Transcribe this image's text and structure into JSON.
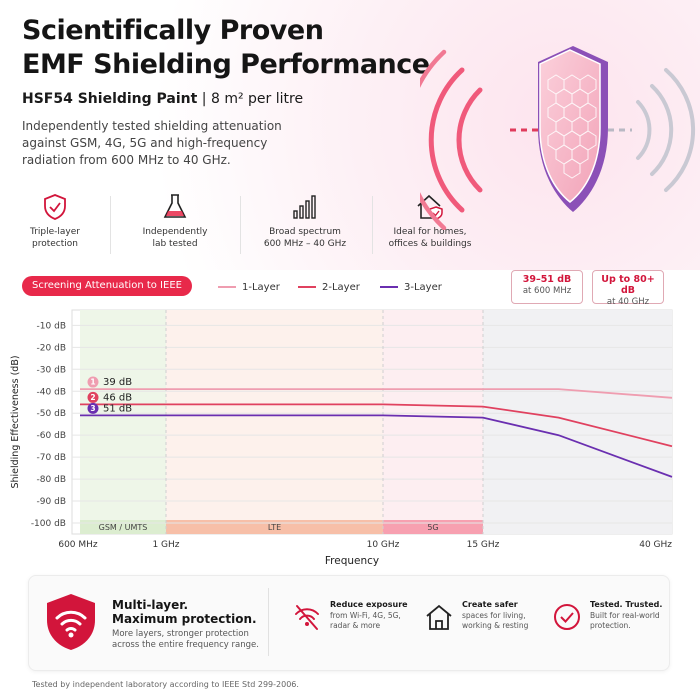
{
  "headline": {
    "line1": "Scientifically Proven",
    "line2": "EMF Shielding Performance"
  },
  "product": {
    "name": "HSF54 Shielding Paint",
    "coverage": "| 8 m² per litre"
  },
  "lead": "Independently tested shielding attenuation against GSM, 4G, 5G and high-frequency radiation from 600 MHz to 40 GHz.",
  "features": [
    {
      "icon": "shield-check-icon",
      "text": "Triple-layer\nprotection"
    },
    {
      "icon": "flask-icon",
      "text": "Independently\nlab tested"
    },
    {
      "icon": "signal-bars-icon",
      "text": "Broad spectrum\n600 MHz – 40 GHz"
    },
    {
      "icon": "house-shield-icon",
      "text": "Ideal for homes,\noffices & buildings"
    }
  ],
  "chart_header": {
    "pill": "Screening Attenuation to IEEE",
    "stat1": {
      "value": "39–51 dB",
      "note": "at 600 MHz"
    },
    "stat2": {
      "value": "Up to 80+ dB",
      "note": "at 40 GHz"
    }
  },
  "chart_data": {
    "type": "line",
    "ylabel": "Shielding Effectiveness (dB)",
    "xlabel": "Frequency",
    "x_ticks": [
      "600 MHz",
      "1 GHz",
      "10 GHz",
      "15 GHz",
      "40 GHz"
    ],
    "y_ticks": [
      "-10 dB",
      "-20 dB",
      "-30 dB",
      "-40 dB",
      "-50 dB",
      "-60 dB",
      "-70 dB",
      "-80 dB",
      "-90 dB",
      "-100 dB"
    ],
    "ylim": [
      -105,
      -3
    ],
    "bands": [
      {
        "label": "GSM / UMTS",
        "from": "600 MHz",
        "to": "1 GHz",
        "color": "#dcedd0"
      },
      {
        "label": "LTE",
        "from": "1 GHz",
        "to": "10 GHz",
        "color": "#f7bfa8"
      },
      {
        "label": "5G",
        "from": "10 GHz",
        "to": "15 GHz",
        "color": "#f7a0b0"
      }
    ],
    "series": [
      {
        "name": "1-Layer",
        "color": "#ef9db0",
        "label": "39 dB",
        "marker": "1",
        "points": [
          [
            0,
            -39
          ],
          [
            1,
            -39
          ],
          [
            2,
            -39
          ],
          [
            3,
            -39
          ],
          [
            3.4,
            -39
          ],
          [
            4,
            -43
          ]
        ]
      },
      {
        "name": "2-Layer",
        "color": "#e0415f",
        "label": "46 dB",
        "marker": "2",
        "points": [
          [
            0,
            -46
          ],
          [
            1,
            -46
          ],
          [
            2,
            -46
          ],
          [
            3,
            -47
          ],
          [
            3.4,
            -52
          ],
          [
            4,
            -65
          ]
        ]
      },
      {
        "name": "3-Layer",
        "color": "#6a2fb0",
        "label": "51 dB",
        "marker": "3",
        "points": [
          [
            0,
            -51
          ],
          [
            1,
            -51
          ],
          [
            2,
            -51
          ],
          [
            3,
            -52
          ],
          [
            3.4,
            -60
          ],
          [
            4,
            -79
          ]
        ]
      }
    ]
  },
  "bottom": {
    "title1": "Multi-layer.",
    "title2": "Maximum protection.",
    "desc": "More layers, stronger protection across the entire frequency range.",
    "benefits": [
      {
        "icon": "wifi-crossed-icon",
        "title": "Reduce exposure",
        "desc": "from Wi-Fi, 4G, 5G, radar & more"
      },
      {
        "icon": "house-icon",
        "title": "Create safer",
        "desc": "spaces for living, working & resting"
      },
      {
        "icon": "check-circle-icon",
        "title": "Tested. Trusted.",
        "desc": "Built for real-world protection."
      }
    ]
  },
  "footnote": "Tested by independent laboratory according to IEEE Std 299-2006.",
  "colors": {
    "accent": "#e8294a",
    "layer1": "#ef9db0",
    "layer2": "#e0415f",
    "layer3": "#6a2fb0"
  }
}
